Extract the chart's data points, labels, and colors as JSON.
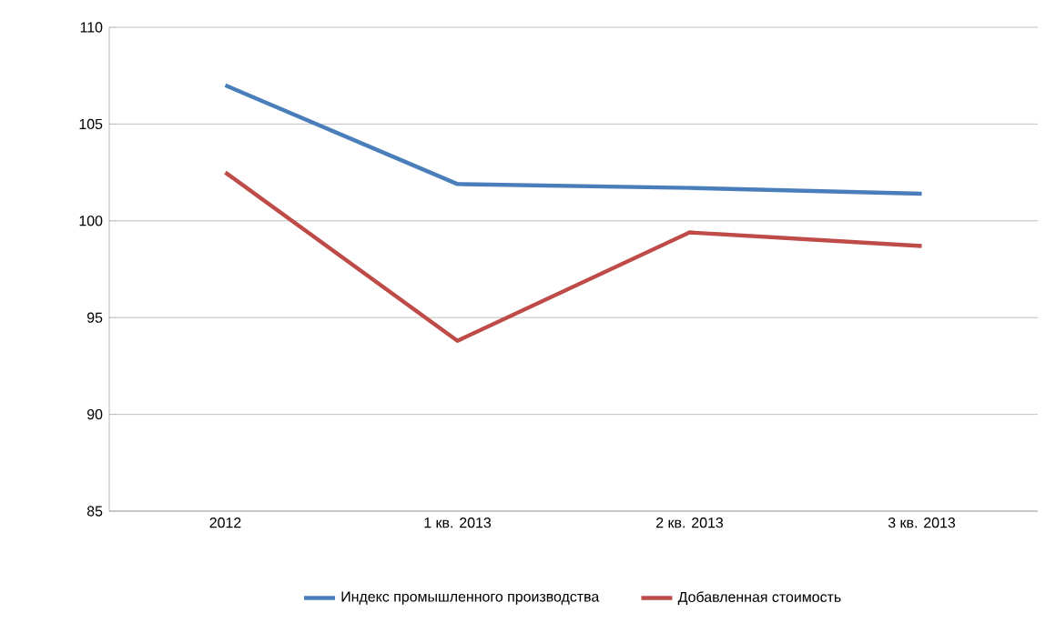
{
  "chart_data": {
    "type": "line",
    "categories": [
      "2012",
      "1 кв. 2013",
      "2 кв. 2013",
      "3 кв. 2013"
    ],
    "series": [
      {
        "name": "Индекс  промышленного производства",
        "color": "#4a7ebb",
        "values": [
          107.0,
          101.9,
          101.7,
          101.4
        ]
      },
      {
        "name": "Добавленная стоимость",
        "color": "#be4b48",
        "values": [
          102.5,
          93.8,
          99.4,
          98.7
        ]
      }
    ],
    "ylim": [
      85,
      110
    ],
    "yticks": [
      85,
      90,
      95,
      100,
      105,
      110
    ],
    "grid": "y",
    "legend": "bottom",
    "marker": "none",
    "line_style": "solid"
  }
}
